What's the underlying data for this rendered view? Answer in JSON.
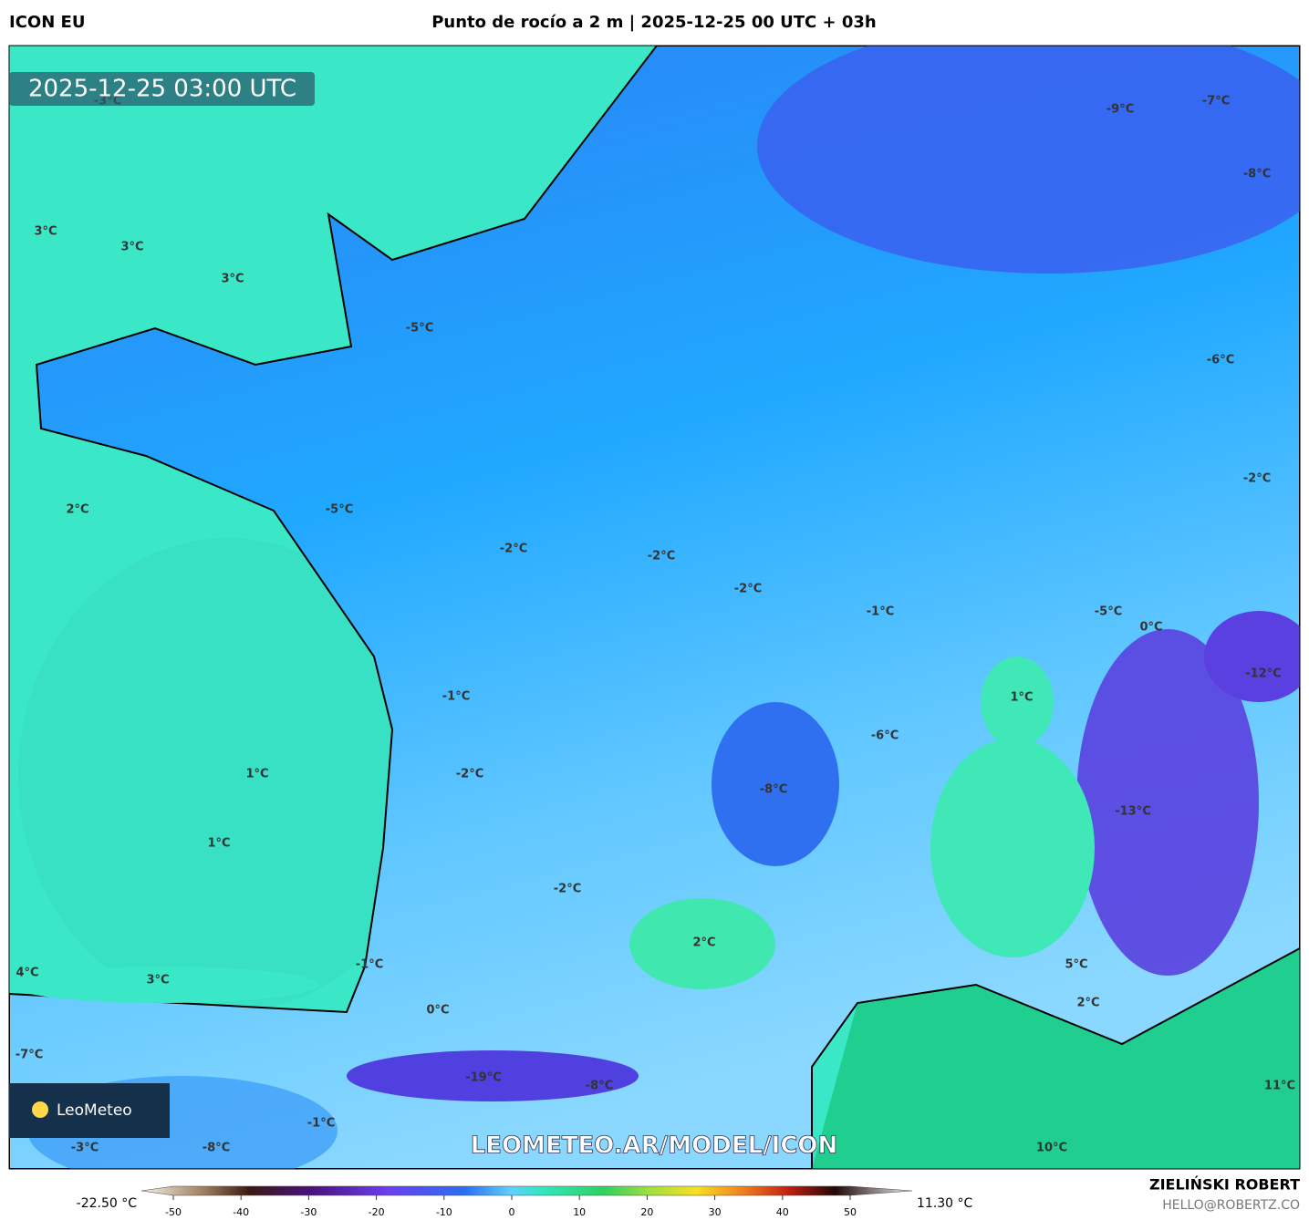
{
  "header": {
    "model": "ICON EU",
    "title": "Punto de rocío a 2 m | 2025-12-25 00 UTC + 03h"
  },
  "map": {
    "timestamp": "2025-12-25 03:00 UTC",
    "logo": "LeoMeteo",
    "watermark": "LEOMETEO.AR/MODEL/ICON",
    "labels": [
      "-3°C",
      "3°C",
      "3°C",
      "3°C",
      "-5°C",
      "-9°C",
      "-7°C",
      "-8°C",
      "-6°C",
      "-2°C",
      "2°C",
      "-5°C",
      "-2°C",
      "-2°C",
      "-2°C",
      "-1°C",
      "-5°C",
      "0°C",
      "-12°C",
      "-1°C",
      "1°C",
      "-6°C",
      "1°C",
      "-2°C",
      "-8°C",
      "-13°C",
      "1°C",
      "-2°C",
      "2°C",
      "-1°C",
      "5°C",
      "4°C",
      "3°C",
      "2°C",
      "0°C",
      "-7°C",
      "-19°C",
      "-8°C",
      "11°C",
      "-1°C",
      "-3°C",
      "-8°C",
      "10°C"
    ]
  },
  "colorbar": {
    "min_label": "-22.50 °C",
    "max_label": "11.30 °C",
    "ticks": [
      -50,
      -40,
      -30,
      -20,
      -10,
      0,
      10,
      20,
      30,
      40,
      50
    ]
  },
  "credit": {
    "author": "ZIELIŃSKI ROBERT",
    "email": "HELLO@ROBERTZ.CO"
  }
}
